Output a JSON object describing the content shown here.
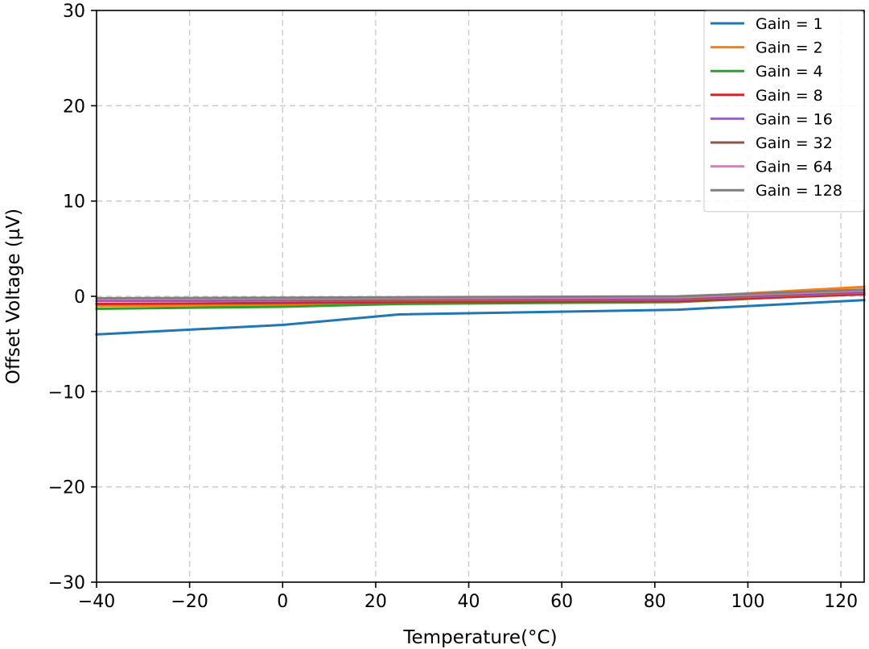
{
  "chart_data": {
    "type": "line",
    "title": "",
    "xlabel": "Temperature(°C)",
    "ylabel": "Offset Voltage (µV)",
    "xlim": [
      -40,
      125
    ],
    "ylim": [
      -30,
      30
    ],
    "xticks": [
      -40,
      -20,
      0,
      20,
      40,
      60,
      80,
      100,
      120
    ],
    "yticks": [
      -30,
      -20,
      -10,
      0,
      10,
      20,
      30
    ],
    "xtick_labels": [
      "−40",
      "−20",
      "0",
      "20",
      "40",
      "60",
      "80",
      "100",
      "120"
    ],
    "ytick_labels": [
      "−30",
      "−20",
      "−10",
      "0",
      "10",
      "20",
      "30"
    ],
    "grid": true,
    "legend_position": "top-right",
    "x": [
      -40,
      0,
      25,
      85,
      125
    ],
    "series": [
      {
        "name": "Gain = 1",
        "color": "#1f77b4",
        "values": [
          -4.0,
          -3.0,
          -1.9,
          -1.4,
          -0.4
        ]
      },
      {
        "name": "Gain = 2",
        "color": "#ff7f0e",
        "values": [
          -1.0,
          -0.9,
          -0.6,
          -0.1,
          1.0
        ]
      },
      {
        "name": "Gain = 4",
        "color": "#2ca02c",
        "values": [
          -1.3,
          -1.1,
          -0.8,
          -0.6,
          0.3
        ]
      },
      {
        "name": "Gain = 8",
        "color": "#d62728",
        "values": [
          -0.8,
          -0.7,
          -0.6,
          -0.5,
          0.2
        ]
      },
      {
        "name": "Gain = 16",
        "color": "#9467bd",
        "values": [
          -0.5,
          -0.45,
          -0.4,
          -0.3,
          0.4
        ]
      },
      {
        "name": "Gain = 32",
        "color": "#8c564b",
        "values": [
          -0.4,
          -0.35,
          -0.3,
          -0.2,
          0.5
        ]
      },
      {
        "name": "Gain = 64",
        "color": "#e377c2",
        "values": [
          -0.3,
          -0.25,
          -0.2,
          -0.1,
          0.6
        ]
      },
      {
        "name": "Gain = 128",
        "color": "#7f7f7f",
        "values": [
          -0.2,
          -0.15,
          -0.1,
          0.0,
          0.7
        ]
      }
    ]
  }
}
